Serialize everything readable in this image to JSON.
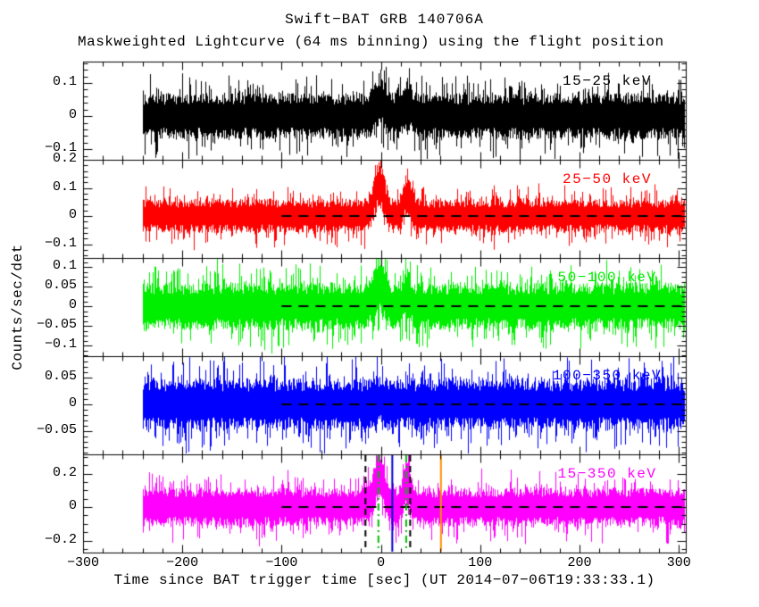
{
  "header": {
    "title": "Swift−BAT GRB 140706A",
    "subtitle": "Maskweighted Lightcurve (64 ms binning) using the flight position"
  },
  "axes": {
    "x_label": "Time since BAT trigger time [sec] (UT 2014−07−06T19:33:33.1)",
    "y_label": "Counts/sec/det",
    "x_range": [
      -300,
      307
    ],
    "x_minor_step": 20,
    "x_major_ticks": [
      {
        "v": -300,
        "label": "−300"
      },
      {
        "v": -200,
        "label": "−200"
      },
      {
        "v": -100,
        "label": "−100"
      },
      {
        "v": 0,
        "label": "0"
      },
      {
        "v": 100,
        "label": "100"
      },
      {
        "v": 200,
        "label": "200"
      },
      {
        "v": 300,
        "label": "300"
      }
    ]
  },
  "chart_data": {
    "type": "line",
    "title": "Swift−BAT GRB 140706A",
    "xlabel": "Time since BAT trigger time [sec] (UT 2014−07−06T19:33:33.1)",
    "ylabel": "Counts/sec/det",
    "x_range": [
      -300,
      307
    ],
    "data_time_span": [
      -240,
      307
    ],
    "binning": "64 ms",
    "grid": false,
    "n_panels": 5,
    "panels": [
      {
        "band": "15−25 keV",
        "color": "#000000",
        "seed": 11,
        "ylim": [
          -0.132,
          0.165
        ],
        "y_minor_step": 0.02,
        "yticks": [
          {
            "v": 0.1,
            "label": "0.1"
          },
          {
            "v": 0,
            "label": "0"
          },
          {
            "v": -0.1,
            "label": "−0.1"
          }
        ],
        "noise_sigma": 0.03,
        "peaks": [
          {
            "t": -2,
            "amplitude": 0.05,
            "width": 5
          },
          {
            "t": 26,
            "amplitude": 0.035,
            "width": 3.5
          }
        ],
        "zero_line": {
          "y": 0,
          "style": "dashed",
          "color": "#000000",
          "from": -100,
          "to": 307
        }
      },
      {
        "band": "25−50 keV",
        "color": "#ff0000",
        "seed": 22,
        "ylim": [
          -0.149,
          0.2
        ],
        "y_minor_step": 0.02,
        "yticks": [
          {
            "v": 0.2,
            "label": "0.2"
          },
          {
            "v": 0.1,
            "label": "0.1"
          },
          {
            "v": 0,
            "label": "0"
          },
          {
            "v": -0.1,
            "label": "−0.1"
          }
        ],
        "noise_sigma": 0.026,
        "peaks": [
          {
            "t": -2,
            "amplitude": 0.11,
            "width": 5
          },
          {
            "t": 26,
            "amplitude": 0.075,
            "width": 3.5
          }
        ],
        "zero_line": {
          "y": 0,
          "style": "dashed",
          "color": "#000000",
          "from": -100,
          "to": 307
        }
      },
      {
        "band": "50−100 keV",
        "color": "#00ee00",
        "seed": 33,
        "ylim": [
          -0.127,
          0.123
        ],
        "y_minor_step": 0.0125,
        "yticks": [
          {
            "v": 0.1,
            "label": "0.1"
          },
          {
            "v": 0.05,
            "label": "0.05"
          },
          {
            "v": 0,
            "label": "0"
          },
          {
            "v": -0.05,
            "label": "−0.05"
          },
          {
            "v": -0.1,
            "label": "−0.1"
          }
        ],
        "noise_sigma": 0.026,
        "peaks": [
          {
            "t": -2,
            "amplitude": 0.055,
            "width": 5
          },
          {
            "t": 26,
            "amplitude": 0.03,
            "width": 3.5
          }
        ],
        "zero_line": {
          "y": 0,
          "style": "dashed",
          "color": "#000000",
          "from": -100,
          "to": 307
        }
      },
      {
        "band": "100−350 keV",
        "color": "#0000ff",
        "seed": 44,
        "ylim": [
          -0.0933,
          0.09
        ],
        "y_minor_step": 0.01,
        "yticks": [
          {
            "v": 0.05,
            "label": "0.05"
          },
          {
            "v": 0,
            "label": "0"
          },
          {
            "v": -0.05,
            "label": "−0.05"
          }
        ],
        "noise_sigma": 0.021,
        "peaks": [
          {
            "t": -2,
            "amplitude": 0.008,
            "width": 5
          }
        ],
        "zero_line": {
          "y": 0,
          "style": "dashed",
          "color": "#000000",
          "from": -100,
          "to": 307
        }
      },
      {
        "band": "15−350 keV",
        "color": "#ff00ff",
        "seed": 55,
        "ylim": [
          -0.272,
          0.315
        ],
        "y_minor_step": 0.05,
        "yticks": [
          {
            "v": 0.2,
            "label": "0.2"
          },
          {
            "v": 0,
            "label": "0"
          },
          {
            "v": -0.2,
            "label": "−0.2"
          }
        ],
        "noise_sigma": 0.05,
        "peaks": [
          {
            "t": -2,
            "amplitude": 0.19,
            "width": 5
          },
          {
            "t": 26,
            "amplitude": 0.13,
            "width": 3.5
          }
        ],
        "zero_line": {
          "y": 0,
          "style": "dashed",
          "color": "#000000",
          "from": -100,
          "to": 307
        },
        "vlines": [
          {
            "t": -16,
            "style": "dashed",
            "color": "#000000"
          },
          {
            "t": -3,
            "style": "dashdot",
            "color": "#00bb00"
          },
          {
            "t": 11,
            "style": "solid",
            "color": "#0000cd"
          },
          {
            "t": 25,
            "style": "dashdot",
            "color": "#00bb00"
          },
          {
            "t": 29,
            "style": "dashed",
            "color": "#000000"
          },
          {
            "t": 60,
            "style": "solid",
            "color": "#ff8f00"
          }
        ]
      }
    ]
  }
}
